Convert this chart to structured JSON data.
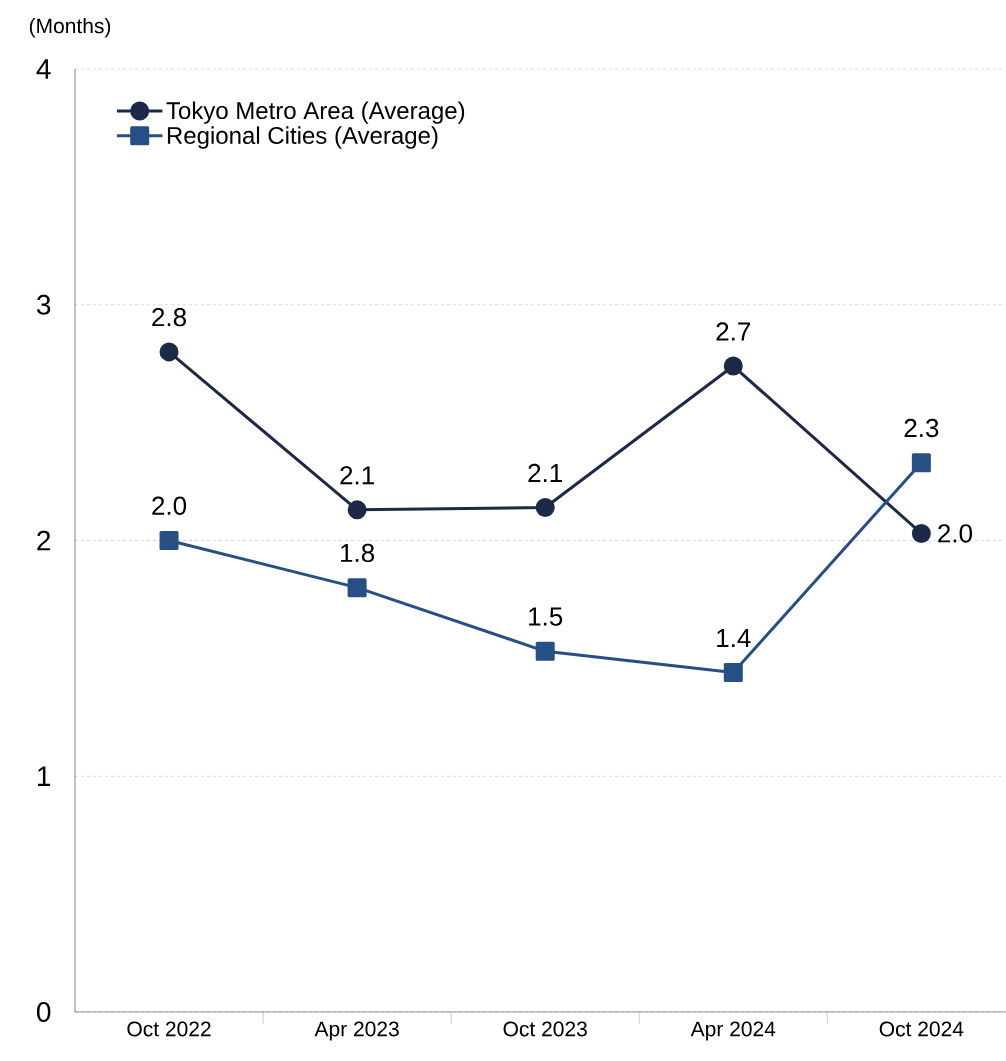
{
  "chart_data": {
    "type": "line",
    "ylabel": "(Months)",
    "categories": [
      "Oct 2022",
      "Apr 2023",
      "Oct 2023",
      "Apr 2024",
      "Oct 2024"
    ],
    "ylim": [
      0,
      4
    ],
    "yticks": [
      0,
      1,
      2,
      3,
      4
    ],
    "grid": "y",
    "legend": "top left",
    "line_style": "solid",
    "series": [
      {
        "name": "Tokyo Metro Area (Average)",
        "color": "#1b2a47",
        "marker": "circle",
        "values": [
          2.8,
          2.13,
          2.14,
          2.74,
          2.03
        ],
        "value_labels": [
          "2.8",
          "2.1",
          "2.1",
          "2.7",
          "2.0"
        ]
      },
      {
        "name": "Regional Cities (Average)",
        "color": "#264f86",
        "marker": "square",
        "values": [
          2.0,
          1.8,
          1.53,
          1.44,
          2.33
        ],
        "value_labels": [
          "2.0",
          "1.8",
          "1.5",
          "1.4",
          "2.3"
        ]
      }
    ]
  }
}
